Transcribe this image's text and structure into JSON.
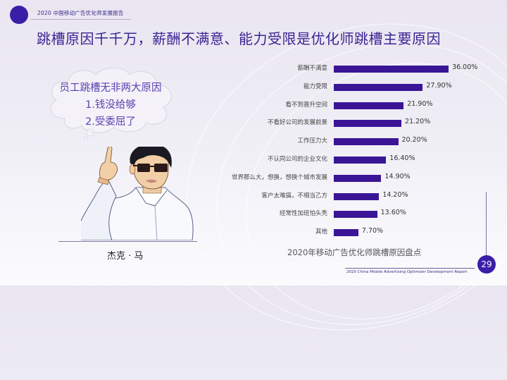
{
  "header": {
    "report_name": "2020 中国移动广告优化师发展报告",
    "accent_color": "#3a1ea8"
  },
  "title": "跳槽原因千千万，薪酬不满意、能力受限是优化师跳槽主要原因",
  "speech_bubble": {
    "line1": "员工跳槽无非两大原因",
    "line2": "1.钱没给够",
    "line3": "2.受委屈了"
  },
  "figure": {
    "name": "杰克 · 马"
  },
  "chart_data": {
    "type": "bar",
    "orientation": "horizontal",
    "title": "2020年移动广告优化师跳槽原因盘点",
    "xlabel": "",
    "ylabel": "",
    "grid": false,
    "legend": null,
    "bar_color": "#3a1596",
    "value_format": "percent",
    "categories": [
      "薪酬不满意",
      "能力受限",
      "看不到晋升空间",
      "不看好公司的发展前景",
      "工作压力大",
      "不认同公司的企业文化",
      "世界那么大，想换，想换个城市发展",
      "客户太难搞，不相当乙方",
      "经常性加班怕头秃",
      "其他"
    ],
    "values": [
      36.0,
      27.9,
      21.9,
      21.2,
      20.2,
      16.4,
      14.9,
      14.2,
      13.6,
      7.7
    ],
    "labels": [
      "36.00%",
      "27.90%",
      "21.90%",
      "21.20%",
      "20.20%",
      "16.40%",
      "14.90%",
      "14.20%",
      "13.60%",
      "7.70%"
    ]
  },
  "footer": {
    "report_name_en": "2020 China Mobile Advertising Optimizer Development Report",
    "page_number": "29"
  }
}
